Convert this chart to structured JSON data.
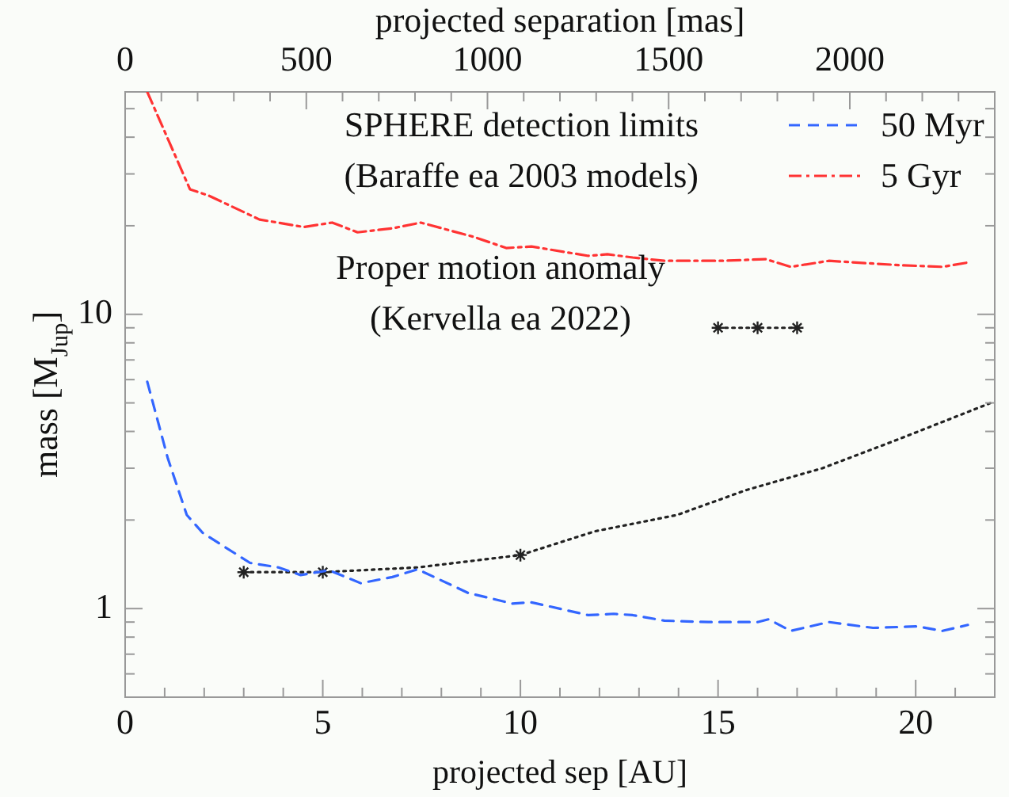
{
  "chart_data": {
    "type": "line",
    "xlabel": "projected sep [AU]",
    "ylabel": "mass [M$_{Jup}$]",
    "x2label": "projected separation [mas]",
    "xlim": [
      0,
      22
    ],
    "xticks": [
      0,
      {
        "value": 1,
        "label": null
      },
      {
        "value": 2,
        "label": null
      },
      {
        "value": 3,
        "label": null
      },
      {
        "value": 4,
        "label": null
      },
      5,
      {
        "value": 6,
        "label": null
      },
      {
        "value": 7,
        "label": null
      },
      {
        "value": 8,
        "label": null
      },
      {
        "value": 9,
        "label": null
      },
      10,
      {
        "value": 11,
        "label": null
      },
      {
        "value": 12,
        "label": null
      },
      {
        "value": 13,
        "label": null
      },
      {
        "value": 14,
        "label": null
      },
      15,
      {
        "value": 16,
        "label": null
      },
      {
        "value": 17,
        "label": null
      },
      {
        "value": 18,
        "label": null
      },
      {
        "value": 19,
        "label": null
      },
      20,
      {
        "value": 21,
        "label": null
      }
    ],
    "x2lim": [
      0,
      2400
    ],
    "x2ticks": [
      0,
      {
        "value": 100,
        "label": null
      },
      {
        "value": 200,
        "label": null
      },
      {
        "value": 300,
        "label": null
      },
      {
        "value": 400,
        "label": null
      },
      500,
      {
        "value": 600,
        "label": null
      },
      {
        "value": 700,
        "label": null
      },
      {
        "value": 800,
        "label": null
      },
      {
        "value": 900,
        "label": null
      },
      1000,
      {
        "value": 1100,
        "label": null
      },
      {
        "value": 1200,
        "label": null
      },
      {
        "value": 1300,
        "label": null
      },
      {
        "value": 1400,
        "label": null
      },
      1500,
      {
        "value": 1600,
        "label": null
      },
      {
        "value": 1700,
        "label": null
      },
      {
        "value": 1800,
        "label": null
      },
      {
        "value": 1900,
        "label": null
      },
      2000,
      {
        "value": 2100,
        "label": null
      },
      {
        "value": 2200,
        "label": null
      },
      {
        "value": 2300,
        "label": null
      }
    ],
    "ylim": [
      0.5,
      57
    ],
    "yticks": [
      {
        "value": 0.5,
        "label": null
      },
      {
        "value": 0.6,
        "label": null
      },
      {
        "value": 0.7,
        "label": null
      },
      {
        "value": 0.8,
        "label": null
      },
      {
        "value": 0.9,
        "label": null
      },
      1,
      {
        "value": 2,
        "label": null
      },
      {
        "value": 3,
        "label": null
      },
      {
        "value": 4,
        "label": null
      },
      {
        "value": 5,
        "label": null
      },
      {
        "value": 6,
        "label": null
      },
      {
        "value": 7,
        "label": null
      },
      {
        "value": 8,
        "label": null
      },
      {
        "value": 9,
        "label": null
      },
      10,
      {
        "value": 20,
        "label": null
      },
      {
        "value": 30,
        "label": null
      },
      {
        "value": 40,
        "label": null
      },
      {
        "value": 50,
        "label": null
      }
    ],
    "log": "y",
    "grid": false,
    "legend": "top right",
    "marker": "none",
    "annotations": [
      "SPHERE detection limits",
      "(Baraffe ea 2003 models)",
      "Proper motion anomaly",
      "(Kervella ea 2022)"
    ],
    "series": [
      {
        "name": "50 Myr",
        "color": "#3366ff",
        "line_style": "dashed",
        "x": [
          0.56,
          1.08,
          1.56,
          1.96,
          2.52,
          3.16,
          3.88,
          4.44,
          5.16,
          5.96,
          6.76,
          7.4,
          8.68,
          9.8,
          10.28,
          11.72,
          12.36,
          12.84,
          13.64,
          14.76,
          16.0,
          16.28,
          16.84,
          17.8,
          18.92,
          20.04,
          20.68,
          21.32
        ],
        "values": [
          5.9,
          3.24,
          2.08,
          1.81,
          1.62,
          1.43,
          1.38,
          1.3,
          1.35,
          1.22,
          1.28,
          1.36,
          1.13,
          1.04,
          1.05,
          0.95,
          0.96,
          0.95,
          0.91,
          0.9,
          0.9,
          0.92,
          0.84,
          0.9,
          0.86,
          0.87,
          0.84,
          0.88
        ]
      },
      {
        "name": "5 Gyr",
        "color": "#ff3333",
        "line_style": "dashdot",
        "x": [
          0.56,
          1.64,
          2.12,
          3.4,
          4.52,
          5.24,
          5.88,
          6.76,
          7.48,
          8.84,
          9.64,
          10.28,
          11.72,
          12.2,
          12.84,
          13.64,
          15.08,
          16.2,
          16.84,
          17.8,
          19.56,
          20.68,
          21.32
        ],
        "values": [
          57,
          26.6,
          25.3,
          21,
          19.8,
          20.5,
          19,
          19.6,
          20.5,
          18.3,
          16.8,
          17,
          15.8,
          16,
          15.6,
          15.2,
          15.2,
          15.4,
          14.5,
          15.2,
          14.7,
          14.5,
          15
        ]
      },
      {
        "color": "#222222",
        "line_style": "dotted",
        "x": [
          3,
          5,
          7.4,
          10,
          11.88,
          13.96,
          15.72,
          17.64,
          19.56,
          21.9
        ],
        "values": [
          1.33,
          1.33,
          1.38,
          1.52,
          1.83,
          2.08,
          2.53,
          3.0,
          3.76,
          5.0
        ]
      },
      {
        "type": "scatter",
        "color": "#222222",
        "marker": "cross",
        "x": [
          3,
          5,
          10
        ],
        "values": [
          1.33,
          1.33,
          1.52
        ]
      },
      {
        "color": "#222222",
        "line_style": "dotted",
        "marker": "cross",
        "x": [
          15,
          16,
          17
        ],
        "values": [
          9,
          9,
          9
        ]
      }
    ]
  }
}
